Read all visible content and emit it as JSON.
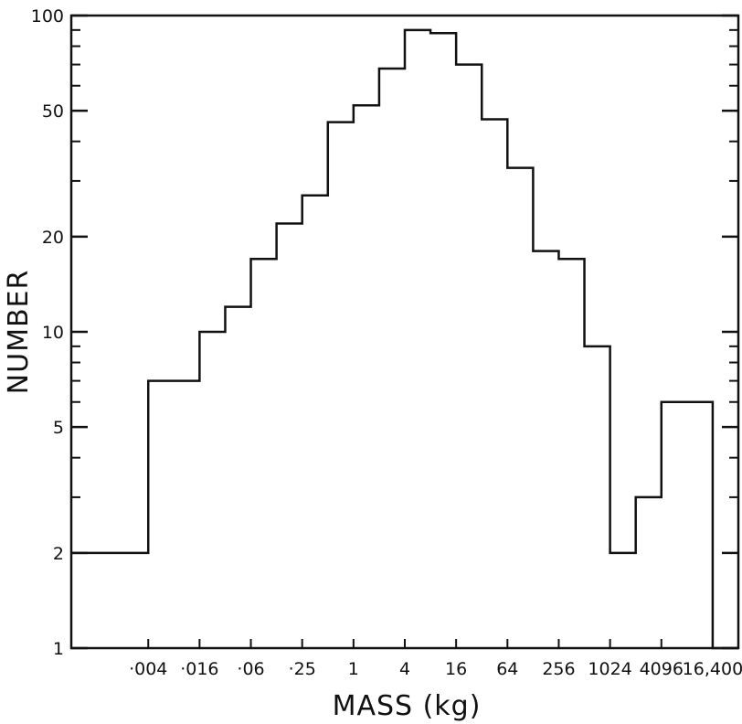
{
  "chart_data": {
    "type": "bar",
    "style": "step-histogram",
    "xlabel": "MASS (kg)",
    "ylabel": "NUMBER",
    "y_scale": "log",
    "ylim": [
      1,
      100
    ],
    "y_tick_labels": [
      "1",
      "2",
      "5",
      "10",
      "20",
      "50",
      "100"
    ],
    "y_tick_values": [
      1,
      2,
      5,
      10,
      20,
      50,
      100
    ],
    "x_tick_labels": [
      "·004",
      "·016",
      "·06",
      "·25",
      "1",
      "4",
      "16",
      "64",
      "256",
      "1024",
      "4096",
      "16,400"
    ],
    "x_tick_log2_values": [
      -8,
      -6,
      -4,
      -2,
      0,
      2,
      4,
      6,
      8,
      10,
      12,
      14
    ],
    "bins_log2_left_edges": [
      -11,
      -10,
      -9,
      -8,
      -7,
      -6,
      -5,
      -4,
      -3,
      -2,
      -1,
      0,
      1,
      2,
      3,
      4,
      5,
      6,
      7,
      8,
      9,
      10,
      11,
      12,
      13,
      14
    ],
    "bin_log2_width": 1,
    "values": [
      2,
      2,
      2,
      7,
      7,
      10,
      12,
      17,
      22,
      27,
      46,
      52,
      68,
      90,
      88,
      70,
      47,
      33,
      18,
      17,
      9,
      2,
      3,
      6,
      6,
      1
    ],
    "grid": false
  }
}
